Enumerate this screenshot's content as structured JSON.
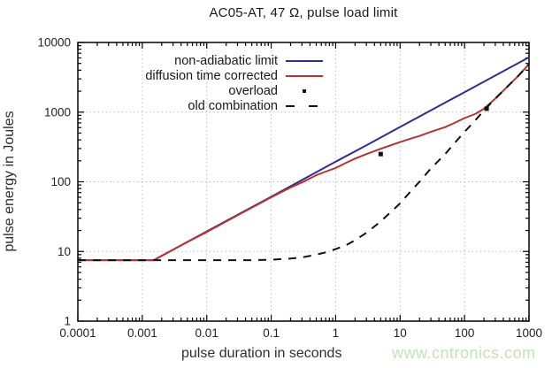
{
  "title": "AC05-AT, 47 Ω, pulse load limit",
  "watermark": "www.cntronics.com",
  "colors": {
    "non_adiabatic_line": "#2e2e8f",
    "diffusion_line": "#b73333",
    "overload_marker": "#111111",
    "old_combination_line": "#111111",
    "grid": "#bfbfbf",
    "frame": "#000000",
    "watermark_green": "#c4e2ba"
  },
  "chart_data": {
    "type": "line",
    "title": "AC05-AT, 47 Ω, pulse load limit",
    "xlabel": "pulse duration in seconds",
    "ylabel": "pulse energy in Joules",
    "x_scale": "log",
    "y_scale": "log",
    "xlim": [
      0.0001,
      1000
    ],
    "ylim": [
      1,
      10000
    ],
    "x_ticks": [
      "0.0001",
      "0.001",
      "0.01",
      "0.1",
      "1",
      "10",
      "100",
      "1000"
    ],
    "y_ticks": [
      "1",
      "10",
      "100",
      "1000",
      "10000"
    ],
    "grid": "dotted, at decade lines",
    "legend_position": "top-left inside plot, labels right-aligned",
    "series": [
      {
        "name": "non-adiabatic limit",
        "style": "solid",
        "color": "#2e2e8f",
        "points": [
          [
            0.0001,
            7.5
          ],
          [
            0.0015,
            7.5
          ],
          [
            0.003,
            10.6
          ],
          [
            0.01,
            19.4
          ],
          [
            0.03,
            33.5
          ],
          [
            0.1,
            61
          ],
          [
            0.3,
            106
          ],
          [
            1,
            194
          ],
          [
            3,
            335
          ],
          [
            10,
            612
          ],
          [
            30,
            1060
          ],
          [
            100,
            1936
          ],
          [
            300,
            3350
          ],
          [
            1000,
            6120
          ]
        ]
      },
      {
        "name": "diffusion time corrected",
        "style": "solid",
        "color": "#b73333",
        "points": [
          [
            0.0001,
            7.5
          ],
          [
            0.0015,
            7.5
          ],
          [
            0.005,
            13.7
          ],
          [
            0.01,
            19
          ],
          [
            0.03,
            33
          ],
          [
            0.1,
            60
          ],
          [
            0.2,
            83
          ],
          [
            0.3,
            98
          ],
          [
            0.5,
            124
          ],
          [
            0.7,
            140
          ],
          [
            1,
            158
          ],
          [
            1.5,
            190
          ],
          [
            2,
            215
          ],
          [
            3,
            250
          ],
          [
            5,
            298
          ],
          [
            7,
            332
          ],
          [
            10,
            372
          ],
          [
            15,
            420
          ],
          [
            20,
            455
          ],
          [
            30,
            520
          ],
          [
            50,
            610
          ],
          [
            70,
            700
          ],
          [
            100,
            820
          ],
          [
            150,
            950
          ],
          [
            200,
            1120
          ],
          [
            300,
            1560
          ],
          [
            500,
            2500
          ],
          [
            700,
            3400
          ],
          [
            1000,
            4900
          ]
        ]
      },
      {
        "name": "overload",
        "style": "points",
        "color": "#111111",
        "points": [
          [
            5,
            250
          ],
          [
            220,
            1120
          ]
        ]
      },
      {
        "name": "old combination",
        "style": "dashed",
        "color": "#111111",
        "points": [
          [
            0.0001,
            7.5
          ],
          [
            0.05,
            7.5
          ],
          [
            0.1,
            7.6
          ],
          [
            0.2,
            7.9
          ],
          [
            0.3,
            8.2
          ],
          [
            0.5,
            9
          ],
          [
            0.7,
            9.7
          ],
          [
            1,
            10.8
          ],
          [
            1.5,
            12.5
          ],
          [
            2,
            14.5
          ],
          [
            3,
            18.5
          ],
          [
            5,
            27
          ],
          [
            7,
            36
          ],
          [
            10,
            49
          ],
          [
            15,
            75
          ],
          [
            20,
            100
          ],
          [
            30,
            155
          ],
          [
            50,
            250
          ],
          [
            70,
            360
          ],
          [
            100,
            520
          ],
          [
            150,
            780
          ],
          [
            200,
            1060
          ],
          [
            300,
            1560
          ],
          [
            500,
            2500
          ],
          [
            700,
            3400
          ],
          [
            1000,
            4900
          ]
        ]
      }
    ]
  }
}
